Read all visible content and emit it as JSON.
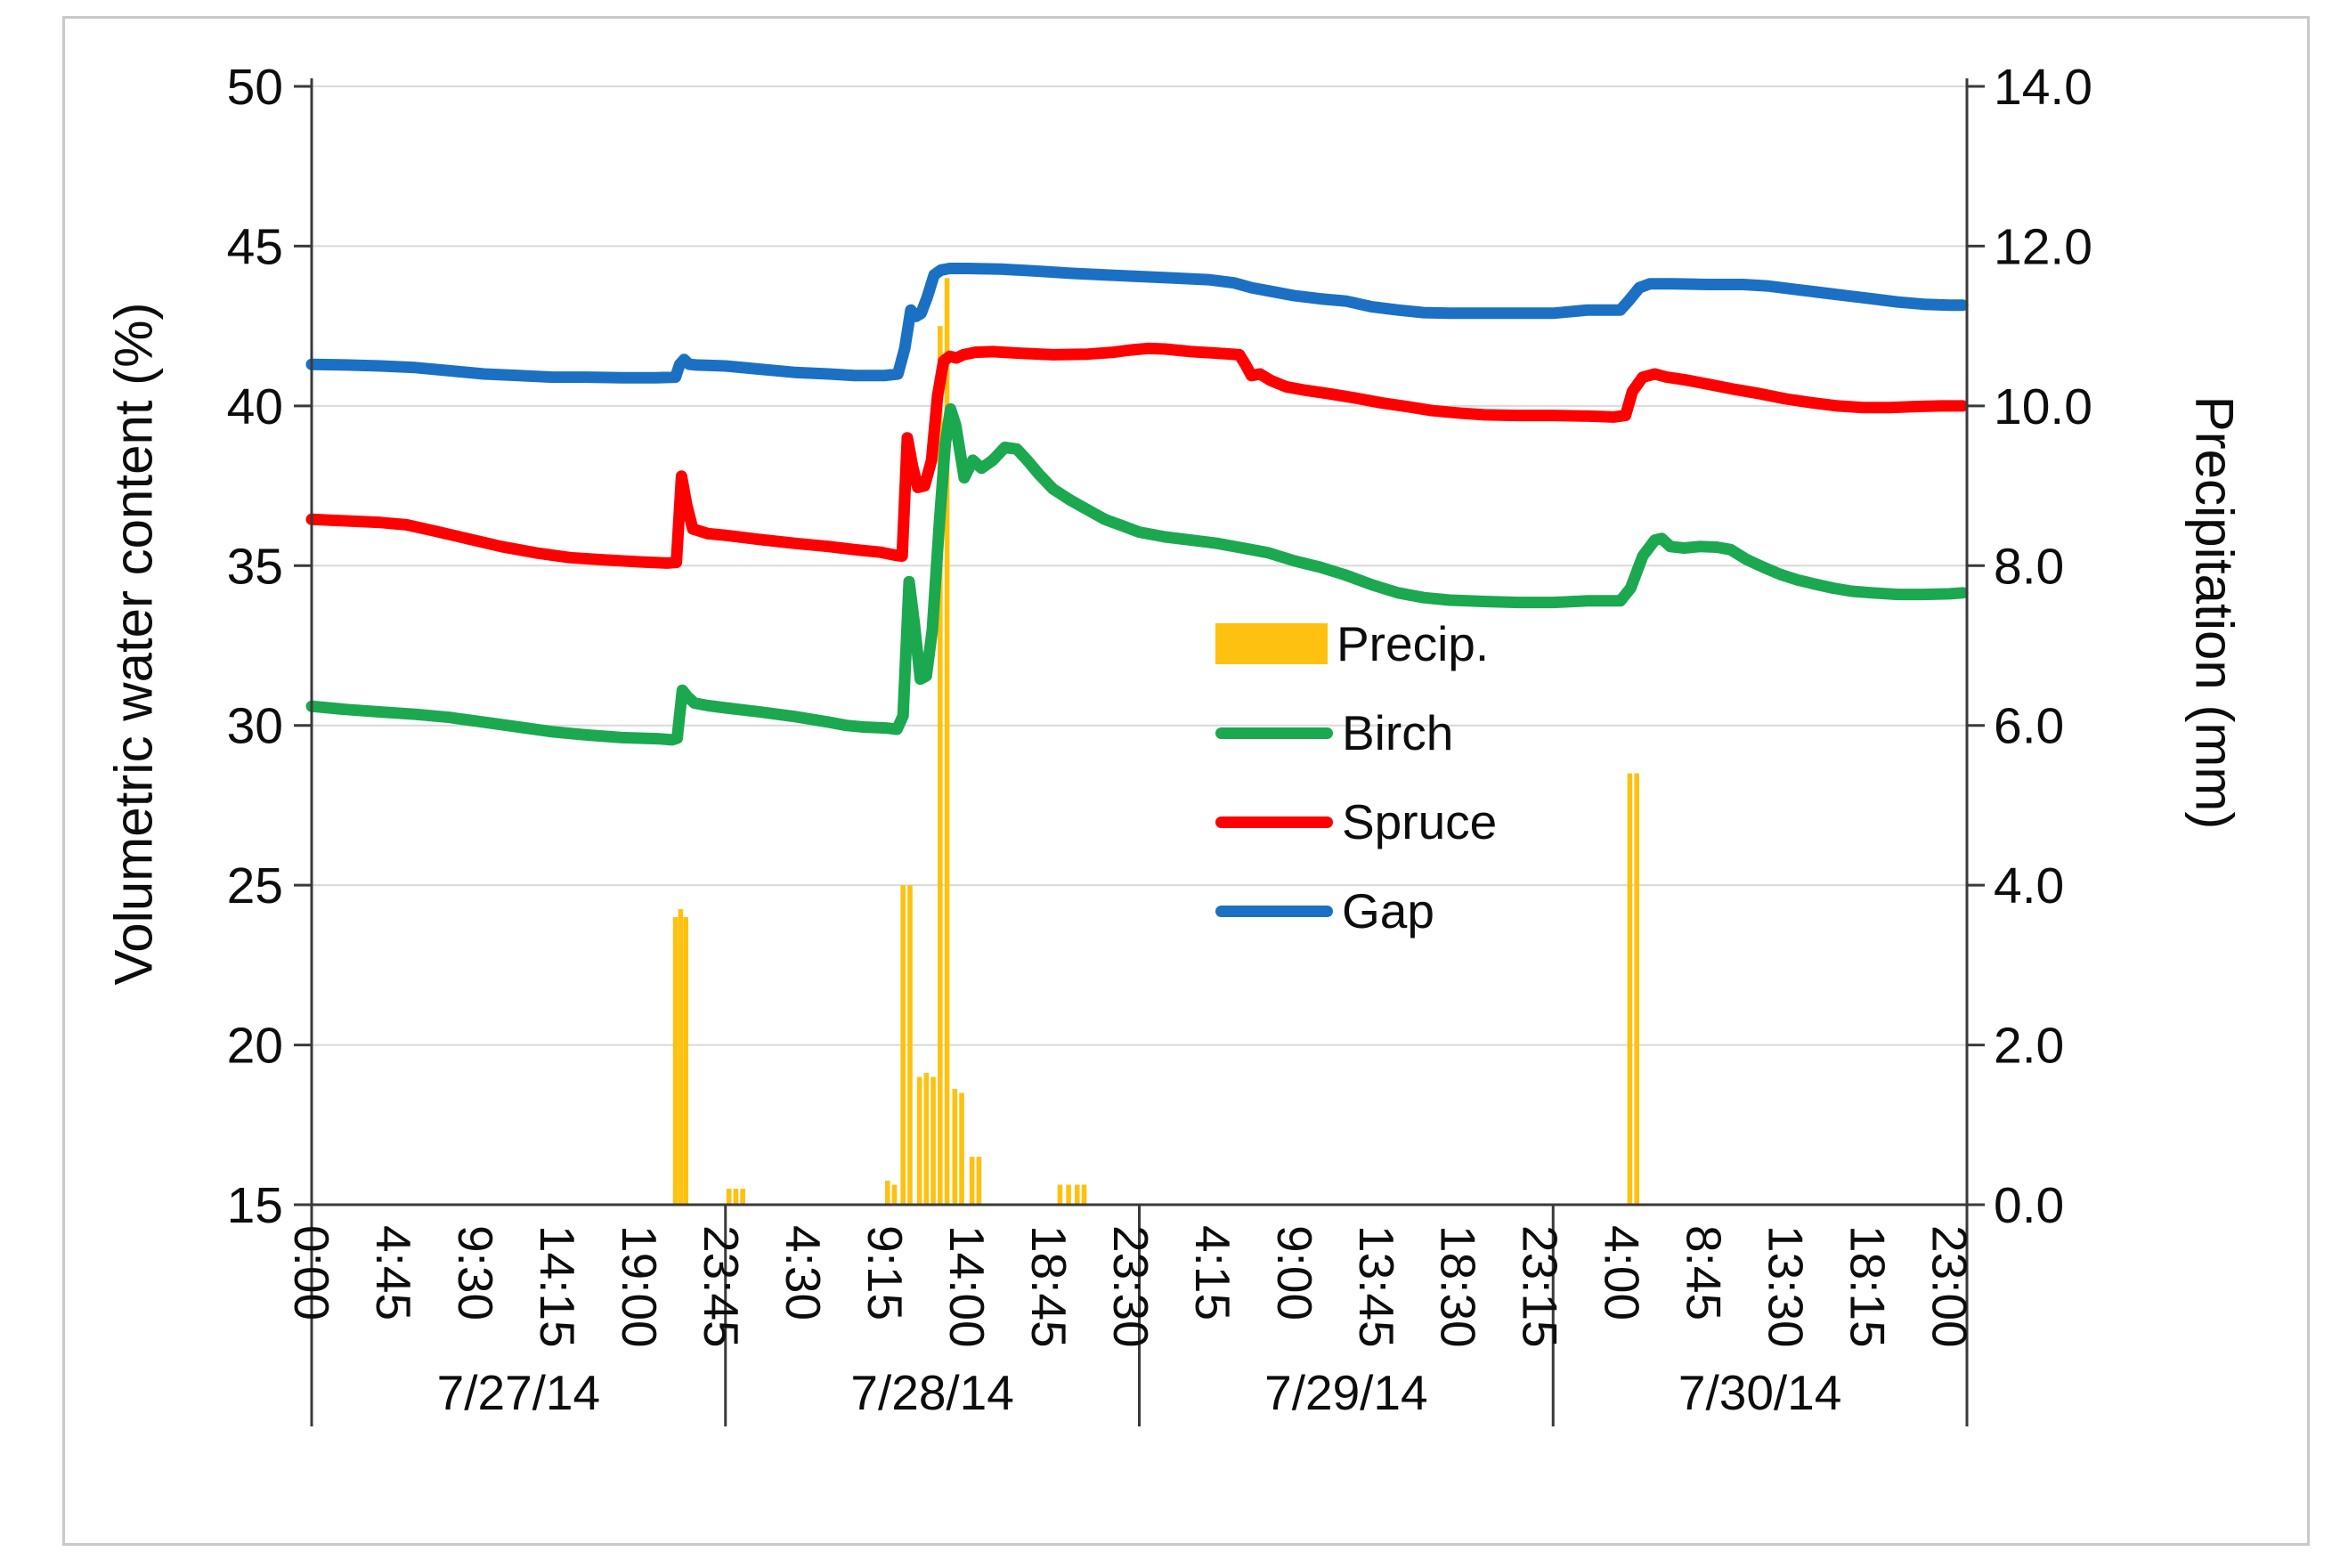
{
  "figure": {
    "background": "#FFFFFF",
    "border_color": "#C9C9C9"
  },
  "chart_data": {
    "type": "line+bar",
    "title": "",
    "ylabel_left": "Volumetric water content (%)",
    "ylabel_right": "Precipitation (mm)",
    "y_left_axis": {
      "min": 15,
      "max": 50,
      "tick_step": 5,
      "tick_labels": [
        "50",
        "45",
        "40",
        "35",
        "30",
        "25",
        "20",
        "15"
      ]
    },
    "y_right_axis": {
      "min": 0,
      "max": 14,
      "tick_step": 2,
      "tick_labels": [
        "14.0",
        "12.0",
        "10.0",
        "8.0",
        "6.0",
        "4.0",
        "2.0",
        "0.0"
      ]
    },
    "x_axis": {
      "hours_min": 0,
      "hours_max": 96,
      "tick_interval_hours": 4.75,
      "tick_labels": [
        "0:00",
        "4:45",
        "9:30",
        "14:15",
        "19:00",
        "23:45",
        "4:30",
        "9:15",
        "14:00",
        "18:45",
        "23:30",
        "4:15",
        "9:00",
        "13:45",
        "18:30",
        "23:15",
        "4:00",
        "8:45",
        "13:30",
        "18:15",
        "23:00"
      ],
      "day_labels": [
        "7/27/14",
        "7/28/14",
        "7/29/14",
        "7/30/14"
      ],
      "day_boundaries_hours": [
        0,
        24,
        48,
        72,
        96
      ]
    },
    "grid": true,
    "colors": {
      "precip": "#FFC110",
      "birch": "#1BA84F",
      "spruce": "#FF0000",
      "gap": "#1B70C4",
      "gridline": "#D9D9D9",
      "axis": "#3A3A3A",
      "text": "#0D0D0D"
    },
    "legend": [
      {
        "label": "Precip.",
        "type": "bar",
        "color": "#FFC110"
      },
      {
        "label": "Birch",
        "type": "line",
        "color": "#1BA84F"
      },
      {
        "label": "Spruce",
        "type": "line",
        "color": "#FF0000"
      },
      {
        "label": "Gap",
        "type": "line",
        "color": "#1B70C4"
      }
    ],
    "precip_bars": {
      "name": "Precip.",
      "color": "#FFC110",
      "unit": "mm",
      "axis": "right",
      "points": [
        [
          21.1,
          3.6
        ],
        [
          21.4,
          3.7
        ],
        [
          21.7,
          3.6
        ],
        [
          24.2,
          0.2
        ],
        [
          24.6,
          0.2
        ],
        [
          25.0,
          0.2
        ],
        [
          33.4,
          0.3
        ],
        [
          33.8,
          0.25
        ],
        [
          34.3,
          4.0
        ],
        [
          34.7,
          4.0
        ],
        [
          35.25,
          1.6
        ],
        [
          35.65,
          1.65
        ],
        [
          36.05,
          1.6
        ],
        [
          36.45,
          11.0
        ],
        [
          36.85,
          11.6
        ],
        [
          37.3,
          1.45
        ],
        [
          37.7,
          1.4
        ],
        [
          38.3,
          0.6
        ],
        [
          38.7,
          0.6
        ],
        [
          43.4,
          0.25
        ],
        [
          43.9,
          0.25
        ],
        [
          44.4,
          0.25
        ],
        [
          44.8,
          0.25
        ],
        [
          76.45,
          5.4
        ],
        [
          76.85,
          5.4
        ]
      ]
    },
    "series": [
      {
        "name": "Birch",
        "color": "#1BA84F",
        "unit": "%",
        "axis": "left",
        "points": [
          [
            0,
            30.6
          ],
          [
            2,
            30.5
          ],
          [
            4,
            30.42
          ],
          [
            6,
            30.35
          ],
          [
            8,
            30.25
          ],
          [
            10,
            30.1
          ],
          [
            12,
            29.95
          ],
          [
            14,
            29.8
          ],
          [
            16,
            29.7
          ],
          [
            18,
            29.62
          ],
          [
            20.2,
            29.58
          ],
          [
            20.9,
            29.55
          ],
          [
            21.2,
            29.6
          ],
          [
            21.5,
            31.1
          ],
          [
            21.8,
            30.9
          ],
          [
            22.2,
            30.7
          ],
          [
            23,
            30.62
          ],
          [
            24,
            30.55
          ],
          [
            26,
            30.42
          ],
          [
            28,
            30.28
          ],
          [
            30,
            30.1
          ],
          [
            31,
            30.0
          ],
          [
            32,
            29.95
          ],
          [
            33.3,
            29.92
          ],
          [
            33.95,
            29.88
          ],
          [
            34.3,
            30.3
          ],
          [
            34.65,
            34.5
          ],
          [
            34.95,
            33.2
          ],
          [
            35.3,
            31.45
          ],
          [
            35.65,
            31.55
          ],
          [
            36,
            33.0
          ],
          [
            36.4,
            36.3
          ],
          [
            36.75,
            38.8
          ],
          [
            37.05,
            39.9
          ],
          [
            37.35,
            39.4
          ],
          [
            37.85,
            37.75
          ],
          [
            38.35,
            38.3
          ],
          [
            38.85,
            38.05
          ],
          [
            39.5,
            38.3
          ],
          [
            40.2,
            38.7
          ],
          [
            40.9,
            38.65
          ],
          [
            41.5,
            38.3
          ],
          [
            42.2,
            37.85
          ],
          [
            43,
            37.4
          ],
          [
            44,
            37.05
          ],
          [
            45,
            36.75
          ],
          [
            46,
            36.45
          ],
          [
            47,
            36.25
          ],
          [
            48,
            36.05
          ],
          [
            49.5,
            35.9
          ],
          [
            51,
            35.8
          ],
          [
            52.5,
            35.7
          ],
          [
            54,
            35.55
          ],
          [
            55.5,
            35.4
          ],
          [
            57,
            35.15
          ],
          [
            58.5,
            34.95
          ],
          [
            60,
            34.7
          ],
          [
            61.5,
            34.4
          ],
          [
            63,
            34.15
          ],
          [
            64.5,
            34.0
          ],
          [
            66,
            33.92
          ],
          [
            68,
            33.88
          ],
          [
            70,
            33.85
          ],
          [
            72,
            33.85
          ],
          [
            74,
            33.9
          ],
          [
            75.9,
            33.9
          ],
          [
            76.5,
            34.3
          ],
          [
            77.2,
            35.3
          ],
          [
            77.9,
            35.8
          ],
          [
            78.3,
            35.85
          ],
          [
            78.8,
            35.6
          ],
          [
            79.6,
            35.55
          ],
          [
            80.5,
            35.6
          ],
          [
            81.5,
            35.58
          ],
          [
            82.3,
            35.5
          ],
          [
            83.2,
            35.2
          ],
          [
            84.2,
            34.95
          ],
          [
            85.2,
            34.72
          ],
          [
            86.2,
            34.55
          ],
          [
            87.2,
            34.42
          ],
          [
            88.2,
            34.3
          ],
          [
            89.3,
            34.2
          ],
          [
            90.5,
            34.15
          ],
          [
            92,
            34.1
          ],
          [
            93.5,
            34.1
          ],
          [
            95,
            34.12
          ],
          [
            95.75,
            34.15
          ]
        ]
      },
      {
        "name": "Spruce",
        "color": "#FF0000",
        "unit": "%",
        "axis": "left",
        "points": [
          [
            0,
            36.45
          ],
          [
            2,
            36.4
          ],
          [
            4,
            36.35
          ],
          [
            5.5,
            36.28
          ],
          [
            7,
            36.1
          ],
          [
            9,
            35.85
          ],
          [
            11,
            35.6
          ],
          [
            13,
            35.4
          ],
          [
            15,
            35.25
          ],
          [
            17,
            35.18
          ],
          [
            19,
            35.12
          ],
          [
            20.6,
            35.08
          ],
          [
            21.15,
            35.1
          ],
          [
            21.45,
            37.8
          ],
          [
            21.75,
            36.9
          ],
          [
            22.1,
            36.15
          ],
          [
            23,
            36.0
          ],
          [
            24,
            35.95
          ],
          [
            26,
            35.82
          ],
          [
            28,
            35.7
          ],
          [
            30,
            35.6
          ],
          [
            31.5,
            35.5
          ],
          [
            33,
            35.42
          ],
          [
            33.9,
            35.32
          ],
          [
            34.25,
            35.3
          ],
          [
            34.55,
            39.0
          ],
          [
            34.85,
            38.1
          ],
          [
            35.15,
            37.45
          ],
          [
            35.55,
            37.5
          ],
          [
            35.95,
            38.3
          ],
          [
            36.3,
            40.3
          ],
          [
            36.65,
            41.4
          ],
          [
            37,
            41.55
          ],
          [
            37.4,
            41.5
          ],
          [
            37.8,
            41.6
          ],
          [
            38.5,
            41.68
          ],
          [
            39.5,
            41.7
          ],
          [
            41,
            41.65
          ],
          [
            43,
            41.6
          ],
          [
            45,
            41.62
          ],
          [
            46.5,
            41.68
          ],
          [
            47.5,
            41.75
          ],
          [
            48.5,
            41.8
          ],
          [
            49.5,
            41.78
          ],
          [
            51,
            41.7
          ],
          [
            52.5,
            41.65
          ],
          [
            53.8,
            41.6
          ],
          [
            54.15,
            41.3
          ],
          [
            54.5,
            40.95
          ],
          [
            55,
            41.0
          ],
          [
            55.6,
            40.8
          ],
          [
            56.5,
            40.6
          ],
          [
            57.5,
            40.5
          ],
          [
            59,
            40.38
          ],
          [
            60.5,
            40.25
          ],
          [
            62,
            40.1
          ],
          [
            63.5,
            39.98
          ],
          [
            65,
            39.85
          ],
          [
            66.5,
            39.78
          ],
          [
            68,
            39.72
          ],
          [
            70,
            39.7
          ],
          [
            72,
            39.7
          ],
          [
            74,
            39.68
          ],
          [
            75.5,
            39.65
          ],
          [
            76.2,
            39.7
          ],
          [
            76.6,
            40.45
          ],
          [
            77.2,
            40.9
          ],
          [
            77.9,
            41.0
          ],
          [
            78.6,
            40.9
          ],
          [
            79.6,
            40.82
          ],
          [
            81,
            40.68
          ],
          [
            82.5,
            40.52
          ],
          [
            84,
            40.38
          ],
          [
            85.5,
            40.22
          ],
          [
            87,
            40.1
          ],
          [
            88.5,
            40.0
          ],
          [
            90,
            39.95
          ],
          [
            91.5,
            39.95
          ],
          [
            93,
            39.98
          ],
          [
            94.5,
            40.0
          ],
          [
            95.75,
            40.0
          ]
        ]
      },
      {
        "name": "Gap",
        "color": "#1B70C4",
        "unit": "%",
        "axis": "left",
        "points": [
          [
            0,
            41.3
          ],
          [
            2,
            41.28
          ],
          [
            4,
            41.25
          ],
          [
            6,
            41.2
          ],
          [
            8,
            41.1
          ],
          [
            10,
            41.0
          ],
          [
            12,
            40.95
          ],
          [
            14,
            40.9
          ],
          [
            16,
            40.9
          ],
          [
            18,
            40.88
          ],
          [
            20,
            40.88
          ],
          [
            21.1,
            40.9
          ],
          [
            21.35,
            41.3
          ],
          [
            21.6,
            41.45
          ],
          [
            21.9,
            41.3
          ],
          [
            22.3,
            41.28
          ],
          [
            24,
            41.25
          ],
          [
            26,
            41.15
          ],
          [
            28,
            41.05
          ],
          [
            30,
            41.0
          ],
          [
            31.5,
            40.95
          ],
          [
            33.2,
            40.95
          ],
          [
            34.0,
            41.0
          ],
          [
            34.4,
            41.8
          ],
          [
            34.75,
            43.0
          ],
          [
            35.05,
            42.8
          ],
          [
            35.35,
            42.9
          ],
          [
            35.7,
            43.4
          ],
          [
            36.1,
            44.1
          ],
          [
            36.5,
            44.25
          ],
          [
            37,
            44.3
          ],
          [
            38,
            44.3
          ],
          [
            40,
            44.28
          ],
          [
            42,
            44.22
          ],
          [
            44,
            44.15
          ],
          [
            46,
            44.1
          ],
          [
            48,
            44.05
          ],
          [
            50,
            44.0
          ],
          [
            52,
            43.95
          ],
          [
            53.5,
            43.85
          ],
          [
            54.5,
            43.7
          ],
          [
            55.5,
            43.6
          ],
          [
            57,
            43.45
          ],
          [
            58.5,
            43.35
          ],
          [
            60,
            43.28
          ],
          [
            61.5,
            43.1
          ],
          [
            63,
            43.0
          ],
          [
            64.5,
            42.92
          ],
          [
            66,
            42.9
          ],
          [
            68,
            42.9
          ],
          [
            70,
            42.9
          ],
          [
            72,
            42.9
          ],
          [
            74,
            43.0
          ],
          [
            75.9,
            43.0
          ],
          [
            76.4,
            43.3
          ],
          [
            77,
            43.7
          ],
          [
            77.6,
            43.82
          ],
          [
            79,
            43.82
          ],
          [
            81,
            43.8
          ],
          [
            83,
            43.8
          ],
          [
            84.5,
            43.75
          ],
          [
            86,
            43.65
          ],
          [
            87.5,
            43.55
          ],
          [
            89,
            43.45
          ],
          [
            90.5,
            43.35
          ],
          [
            92,
            43.25
          ],
          [
            93.5,
            43.18
          ],
          [
            95,
            43.15
          ],
          [
            95.75,
            43.15
          ]
        ]
      }
    ]
  }
}
